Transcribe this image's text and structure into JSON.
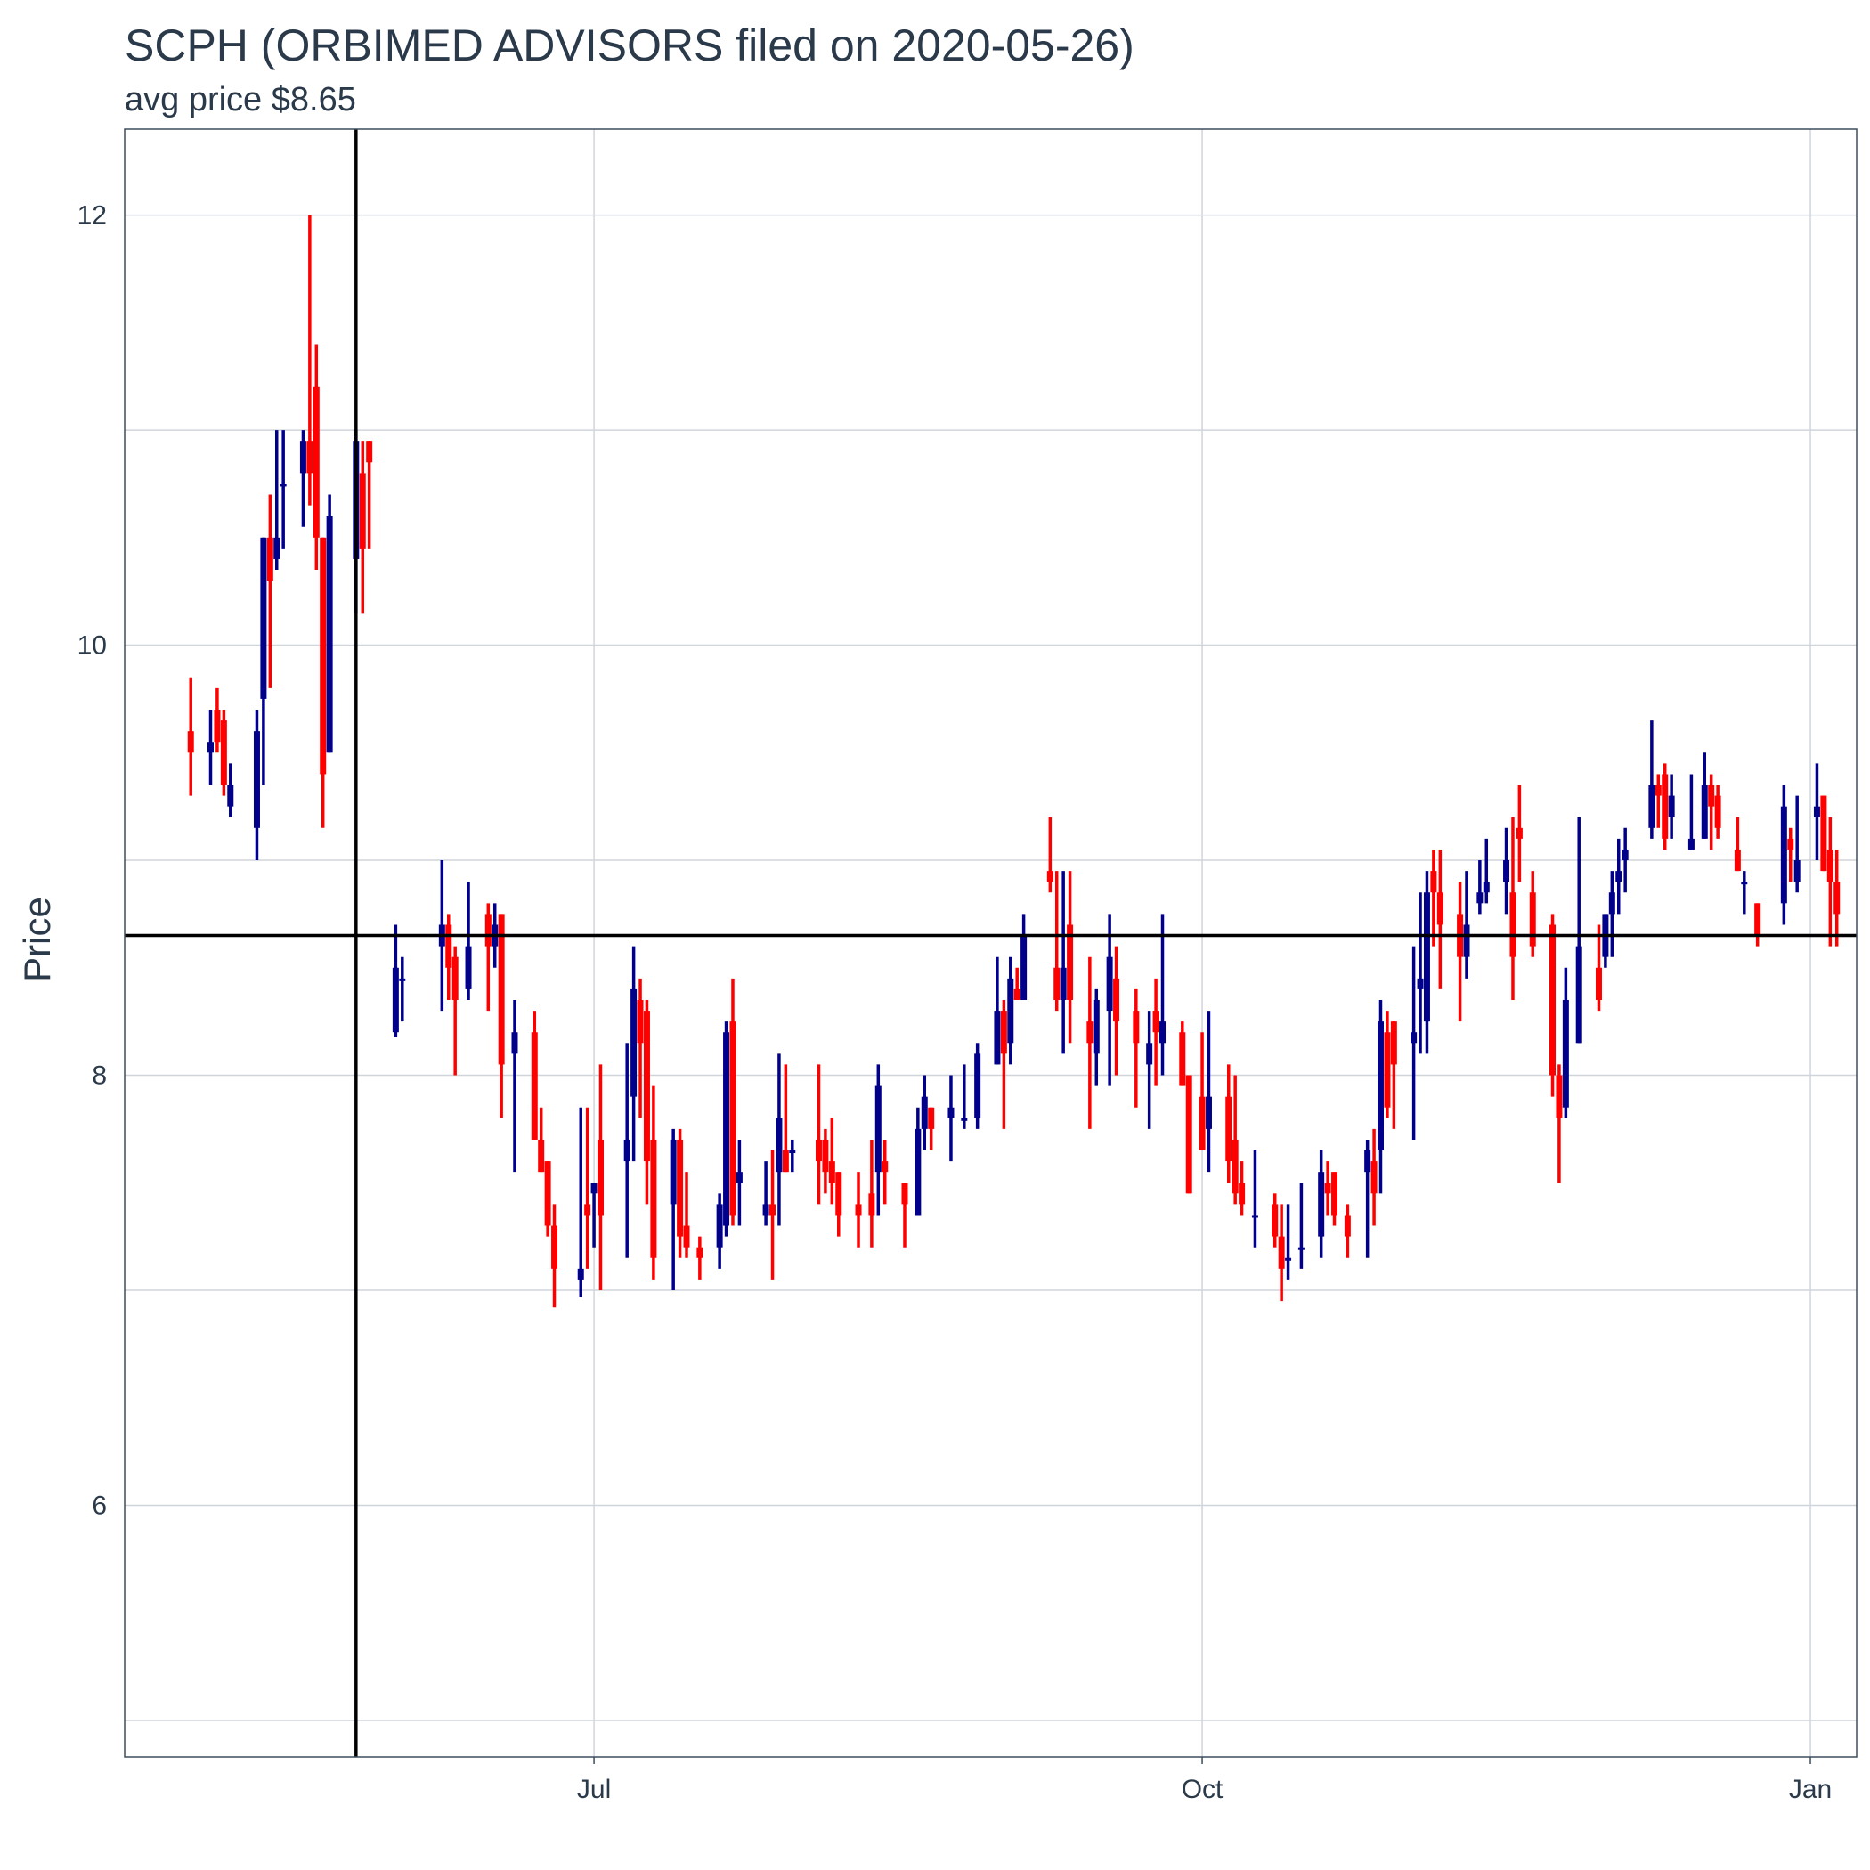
{
  "chart_data": {
    "type": "candlestick",
    "title": "SCPH (ORBIMED ADVISORS filed on 2020-05-26)",
    "subtitle": "avg price $8.65",
    "ylabel": "Price",
    "xlabel": "",
    "ylim": [
      4.83,
      12.4
    ],
    "xlim": [
      "2020-04-21",
      "2021-01-08"
    ],
    "y_ticks": [
      6,
      8,
      10,
      12
    ],
    "x_ticks": [
      {
        "date": "2020-07-01",
        "label": "Jul"
      },
      {
        "date": "2020-10-01",
        "label": "Oct"
      },
      {
        "date": "2021-01-01",
        "label": "Jan"
      }
    ],
    "grid": true,
    "reference_lines": {
      "hline": 8.65,
      "vline_date": "2020-05-26"
    },
    "colors": {
      "up": "#00008b",
      "down": "#ff0000",
      "reference": "#000000",
      "grid": "#d0d5db",
      "text": "#2b3a4a",
      "border": "#3d4d5c"
    },
    "candles": [
      [
        "2020-05-01",
        9.6,
        9.85,
        9.3,
        9.5
      ],
      [
        "2020-05-04",
        9.5,
        9.7,
        9.35,
        9.55
      ],
      [
        "2020-05-05",
        9.7,
        9.8,
        9.5,
        9.55
      ],
      [
        "2020-05-06",
        9.65,
        9.7,
        9.3,
        9.35
      ],
      [
        "2020-05-07",
        9.25,
        9.45,
        9.2,
        9.35
      ],
      [
        "2020-05-11",
        9.15,
        9.7,
        9.0,
        9.6
      ],
      [
        "2020-05-12",
        9.75,
        10.5,
        9.35,
        10.5
      ],
      [
        "2020-05-13",
        10.5,
        10.7,
        9.8,
        10.3
      ],
      [
        "2020-05-14",
        10.4,
        11.0,
        10.35,
        10.5
      ],
      [
        "2020-05-15",
        10.75,
        11.0,
        10.45,
        10.75
      ],
      [
        "2020-05-18",
        10.8,
        11.0,
        10.55,
        10.95
      ],
      [
        "2020-05-19",
        10.95,
        12.0,
        10.65,
        10.8
      ],
      [
        "2020-05-20",
        11.2,
        11.4,
        10.35,
        10.5
      ],
      [
        "2020-05-21",
        10.5,
        10.5,
        9.15,
        9.4
      ],
      [
        "2020-05-22",
        9.5,
        10.7,
        9.5,
        10.6
      ],
      [
        "2020-05-26",
        10.4,
        11.0,
        10.15,
        10.95
      ],
      [
        "2020-05-27",
        10.8,
        10.95,
        10.15,
        10.45
      ],
      [
        "2020-05-28",
        10.95,
        10.95,
        10.45,
        10.85
      ],
      [
        "2020-06-01",
        8.2,
        8.7,
        8.18,
        8.5
      ],
      [
        "2020-06-02",
        8.45,
        8.55,
        8.25,
        8.45
      ],
      [
        "2020-06-08",
        8.6,
        9.0,
        8.3,
        8.7
      ],
      [
        "2020-06-09",
        8.7,
        8.75,
        8.35,
        8.5
      ],
      [
        "2020-06-10",
        8.55,
        8.6,
        8.0,
        8.35
      ],
      [
        "2020-06-12",
        8.4,
        8.9,
        8.35,
        8.6
      ],
      [
        "2020-06-15",
        8.75,
        8.8,
        8.3,
        8.6
      ],
      [
        "2020-06-16",
        8.6,
        8.8,
        8.5,
        8.7
      ],
      [
        "2020-06-17",
        8.75,
        8.75,
        7.8,
        8.05
      ],
      [
        "2020-06-19",
        8.1,
        8.35,
        7.55,
        8.2
      ],
      [
        "2020-06-22",
        8.2,
        8.3,
        7.7,
        7.7
      ],
      [
        "2020-06-23",
        7.7,
        7.85,
        7.55,
        7.55
      ],
      [
        "2020-06-24",
        7.6,
        7.6,
        7.25,
        7.3
      ],
      [
        "2020-06-25",
        7.3,
        7.4,
        6.92,
        7.1
      ],
      [
        "2020-06-29",
        7.05,
        7.85,
        6.97,
        7.1
      ],
      [
        "2020-06-30",
        7.4,
        7.85,
        7.1,
        7.35
      ],
      [
        "2020-07-01",
        7.45,
        7.5,
        7.2,
        7.5
      ],
      [
        "2020-07-02",
        7.7,
        8.05,
        7.0,
        7.35
      ],
      [
        "2020-07-06",
        7.6,
        8.15,
        7.15,
        7.7
      ],
      [
        "2020-07-07",
        7.9,
        8.6,
        7.6,
        8.4
      ],
      [
        "2020-07-08",
        8.35,
        8.45,
        7.8,
        8.15
      ],
      [
        "2020-07-09",
        8.3,
        8.35,
        7.4,
        7.6
      ],
      [
        "2020-07-10",
        7.7,
        7.95,
        7.05,
        7.15
      ],
      [
        "2020-07-13",
        7.4,
        7.75,
        7.0,
        7.7
      ],
      [
        "2020-07-14",
        7.7,
        7.75,
        7.15,
        7.25
      ],
      [
        "2020-07-15",
        7.3,
        7.55,
        7.15,
        7.2
      ],
      [
        "2020-07-17",
        7.2,
        7.25,
        7.05,
        7.15
      ],
      [
        "2020-07-20",
        7.2,
        7.45,
        7.1,
        7.4
      ],
      [
        "2020-07-21",
        7.3,
        8.25,
        7.25,
        8.2
      ],
      [
        "2020-07-22",
        8.25,
        8.45,
        7.3,
        7.35
      ],
      [
        "2020-07-23",
        7.5,
        7.7,
        7.3,
        7.55
      ],
      [
        "2020-07-27",
        7.35,
        7.6,
        7.3,
        7.4
      ],
      [
        "2020-07-28",
        7.4,
        7.65,
        7.05,
        7.35
      ],
      [
        "2020-07-29",
        7.55,
        8.1,
        7.3,
        7.8
      ],
      [
        "2020-07-30",
        7.65,
        8.05,
        7.55,
        7.55
      ],
      [
        "2020-07-31",
        7.65,
        7.7,
        7.55,
        7.65
      ],
      [
        "2020-08-04",
        7.7,
        8.05,
        7.4,
        7.6
      ],
      [
        "2020-08-05",
        7.7,
        7.75,
        7.45,
        7.55
      ],
      [
        "2020-08-06",
        7.6,
        7.8,
        7.4,
        7.5
      ],
      [
        "2020-08-07",
        7.55,
        7.55,
        7.25,
        7.35
      ],
      [
        "2020-08-10",
        7.4,
        7.55,
        7.2,
        7.35
      ],
      [
        "2020-08-12",
        7.45,
        7.7,
        7.2,
        7.35
      ],
      [
        "2020-08-13",
        7.55,
        8.05,
        7.35,
        7.95
      ],
      [
        "2020-08-14",
        7.6,
        7.7,
        7.4,
        7.55
      ],
      [
        "2020-08-17",
        7.5,
        7.5,
        7.2,
        7.4
      ],
      [
        "2020-08-19",
        7.35,
        7.85,
        7.35,
        7.75
      ],
      [
        "2020-08-20",
        7.75,
        8.0,
        7.65,
        7.9
      ],
      [
        "2020-08-21",
        7.85,
        7.85,
        7.65,
        7.75
      ],
      [
        "2020-08-24",
        7.8,
        8.0,
        7.6,
        7.85
      ],
      [
        "2020-08-26",
        7.8,
        8.05,
        7.75,
        7.8
      ],
      [
        "2020-08-28",
        7.8,
        8.15,
        7.75,
        8.1
      ],
      [
        "2020-08-31",
        8.05,
        8.55,
        8.05,
        8.3
      ],
      [
        "2020-09-01",
        8.3,
        8.35,
        7.75,
        8.1
      ],
      [
        "2020-09-02",
        8.15,
        8.55,
        8.05,
        8.45
      ],
      [
        "2020-09-03",
        8.4,
        8.5,
        8.35,
        8.35
      ],
      [
        "2020-09-04",
        8.35,
        8.75,
        8.35,
        8.65
      ],
      [
        "2020-09-08",
        8.95,
        9.2,
        8.85,
        8.9
      ],
      [
        "2020-09-09",
        8.5,
        8.95,
        8.3,
        8.35
      ],
      [
        "2020-09-10",
        8.35,
        8.95,
        8.1,
        8.5
      ],
      [
        "2020-09-11",
        8.7,
        8.95,
        8.15,
        8.35
      ],
      [
        "2020-09-14",
        8.25,
        8.55,
        7.75,
        8.15
      ],
      [
        "2020-09-15",
        8.1,
        8.4,
        7.95,
        8.35
      ],
      [
        "2020-09-17",
        8.3,
        8.75,
        7.95,
        8.55
      ],
      [
        "2020-09-18",
        8.45,
        8.6,
        8.0,
        8.25
      ],
      [
        "2020-09-21",
        8.3,
        8.4,
        7.85,
        8.15
      ],
      [
        "2020-09-23",
        8.05,
        8.3,
        7.75,
        8.15
      ],
      [
        "2020-09-24",
        8.3,
        8.45,
        7.95,
        8.2
      ],
      [
        "2020-09-25",
        8.15,
        8.75,
        8.0,
        8.25
      ],
      [
        "2020-09-28",
        8.2,
        8.25,
        7.95,
        7.95
      ],
      [
        "2020-09-29",
        8.0,
        8.0,
        7.45,
        7.45
      ],
      [
        "2020-10-01",
        7.9,
        8.2,
        7.65,
        7.65
      ],
      [
        "2020-10-02",
        7.75,
        8.3,
        7.55,
        7.9
      ],
      [
        "2020-10-05",
        7.9,
        8.05,
        7.5,
        7.6
      ],
      [
        "2020-10-06",
        7.7,
        8.0,
        7.4,
        7.45
      ],
      [
        "2020-10-07",
        7.5,
        7.6,
        7.35,
        7.4
      ],
      [
        "2020-10-09",
        7.35,
        7.65,
        7.2,
        7.35
      ],
      [
        "2020-10-12",
        7.4,
        7.45,
        7.2,
        7.25
      ],
      [
        "2020-10-13",
        7.25,
        7.4,
        6.95,
        7.1
      ],
      [
        "2020-10-14",
        7.15,
        7.4,
        7.05,
        7.15
      ],
      [
        "2020-10-16",
        7.2,
        7.5,
        7.1,
        7.2
      ],
      [
        "2020-10-19",
        7.25,
        7.65,
        7.15,
        7.55
      ],
      [
        "2020-10-20",
        7.5,
        7.6,
        7.35,
        7.45
      ],
      [
        "2020-10-21",
        7.55,
        7.55,
        7.3,
        7.35
      ],
      [
        "2020-10-23",
        7.35,
        7.4,
        7.15,
        7.25
      ],
      [
        "2020-10-26",
        7.55,
        7.7,
        7.15,
        7.65
      ],
      [
        "2020-10-27",
        7.6,
        7.75,
        7.3,
        7.45
      ],
      [
        "2020-10-28",
        7.65,
        8.35,
        7.45,
        8.25
      ],
      [
        "2020-10-29",
        8.2,
        8.3,
        7.8,
        7.85
      ],
      [
        "2020-10-30",
        8.25,
        8.25,
        7.75,
        8.05
      ],
      [
        "2020-11-02",
        8.15,
        8.6,
        7.7,
        8.2
      ],
      [
        "2020-11-03",
        8.4,
        8.85,
        8.1,
        8.45
      ],
      [
        "2020-11-04",
        8.25,
        8.95,
        8.1,
        8.85
      ],
      [
        "2020-11-05",
        8.95,
        9.05,
        8.6,
        8.85
      ],
      [
        "2020-11-06",
        8.85,
        9.05,
        8.4,
        8.7
      ],
      [
        "2020-11-09",
        8.75,
        8.9,
        8.25,
        8.55
      ],
      [
        "2020-11-10",
        8.55,
        8.95,
        8.45,
        8.7
      ],
      [
        "2020-11-12",
        8.8,
        9.0,
        8.75,
        8.85
      ],
      [
        "2020-11-13",
        8.85,
        9.1,
        8.8,
        8.9
      ],
      [
        "2020-11-16",
        8.9,
        9.15,
        8.75,
        9.0
      ],
      [
        "2020-11-17",
        8.85,
        9.2,
        8.35,
        8.55
      ],
      [
        "2020-11-18",
        9.15,
        9.35,
        8.9,
        9.1
      ],
      [
        "2020-11-20",
        8.85,
        8.95,
        8.55,
        8.6
      ],
      [
        "2020-11-23",
        8.7,
        8.75,
        7.9,
        8.0
      ],
      [
        "2020-11-24",
        8.0,
        8.05,
        7.5,
        7.8
      ],
      [
        "2020-11-25",
        7.85,
        8.5,
        7.8,
        8.35
      ],
      [
        "2020-11-27",
        8.15,
        9.2,
        8.15,
        8.6
      ],
      [
        "2020-11-30",
        8.5,
        8.7,
        8.3,
        8.35
      ],
      [
        "2020-12-01",
        8.55,
        8.75,
        8.5,
        8.75
      ],
      [
        "2020-12-02",
        8.75,
        8.95,
        8.55,
        8.85
      ],
      [
        "2020-12-03",
        8.9,
        9.1,
        8.75,
        8.95
      ],
      [
        "2020-12-04",
        9.0,
        9.15,
        8.85,
        9.05
      ],
      [
        "2020-12-08",
        9.15,
        9.65,
        9.1,
        9.35
      ],
      [
        "2020-12-09",
        9.35,
        9.4,
        9.15,
        9.3
      ],
      [
        "2020-12-10",
        9.4,
        9.45,
        9.05,
        9.1
      ],
      [
        "2020-12-11",
        9.2,
        9.4,
        9.1,
        9.3
      ],
      [
        "2020-12-14",
        9.05,
        9.4,
        9.05,
        9.1
      ],
      [
        "2020-12-16",
        9.1,
        9.5,
        9.1,
        9.35
      ],
      [
        "2020-12-17",
        9.35,
        9.4,
        9.05,
        9.25
      ],
      [
        "2020-12-18",
        9.3,
        9.35,
        9.1,
        9.15
      ],
      [
        "2020-12-21",
        9.05,
        9.2,
        8.95,
        8.95
      ],
      [
        "2020-12-22",
        8.9,
        8.95,
        8.75,
        8.9
      ],
      [
        "2020-12-24",
        8.8,
        8.8,
        8.6,
        8.65
      ],
      [
        "2020-12-28",
        8.8,
        9.35,
        8.7,
        9.25
      ],
      [
        "2020-12-29",
        9.1,
        9.15,
        8.9,
        9.05
      ],
      [
        "2020-12-30",
        8.9,
        9.3,
        8.85,
        9.0
      ],
      [
        "2021-01-02",
        9.2,
        9.45,
        9.0,
        9.25
      ],
      [
        "2021-01-03",
        9.3,
        9.3,
        8.95,
        8.95
      ],
      [
        "2021-01-04",
        9.05,
        9.2,
        8.6,
        8.9
      ],
      [
        "2021-01-05",
        8.9,
        9.05,
        8.6,
        8.75
      ]
    ]
  }
}
